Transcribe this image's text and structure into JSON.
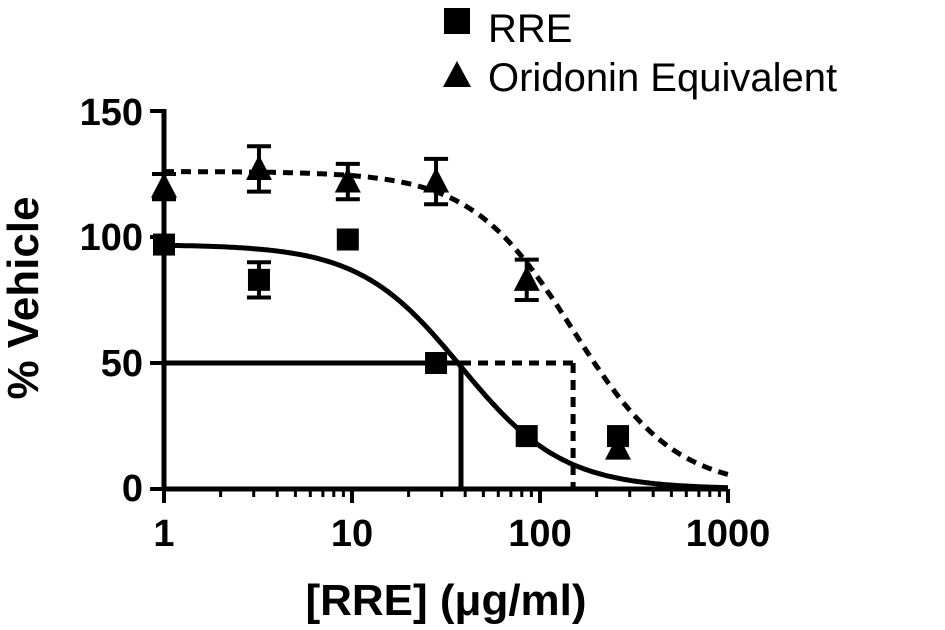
{
  "chart_data": {
    "type": "scatter",
    "title": "",
    "xlabel": "[RRE] (μg/ml)",
    "ylabel": "% Vehicle",
    "xscale": "log",
    "xlim": [
      1,
      1000
    ],
    "ylim": [
      0,
      150
    ],
    "xticks": [
      1,
      10,
      100,
      1000
    ],
    "xtick_labels": [
      "1",
      "10",
      "100",
      "1000"
    ],
    "yticks": [
      0,
      50,
      100,
      150
    ],
    "ytick_labels": [
      "0",
      "50",
      "100",
      "150"
    ],
    "grid": false,
    "legend_position": "top-right",
    "series": [
      {
        "name": "RRE",
        "marker": "square",
        "line_style": "solid",
        "x": [
          1,
          3.2,
          9.5,
          28,
          85,
          260
        ],
        "y": [
          97,
          83,
          99,
          50,
          21,
          21
        ],
        "err": [
          0,
          7,
          0,
          0,
          0,
          0
        ],
        "fit_ic50": 38,
        "fit_top": 97,
        "fit_hill": 1.6
      },
      {
        "name": "Oridonin Equivalent",
        "marker": "triangle",
        "line_style": "dashed",
        "x": [
          1,
          3.2,
          9.5,
          28,
          85,
          260
        ],
        "y": [
          120,
          127,
          122,
          122,
          83,
          16
        ],
        "err": [
          5,
          9,
          7,
          9,
          8,
          0
        ],
        "fit_ic50": 150,
        "fit_top": 126,
        "fit_hill": 1.6
      }
    ],
    "reference_lines": [
      {
        "series": "RRE",
        "y": 50,
        "x": 38,
        "style": "solid"
      },
      {
        "series": "Oridonin Equivalent",
        "y": 50,
        "x": 150,
        "style": "dashed"
      }
    ]
  }
}
